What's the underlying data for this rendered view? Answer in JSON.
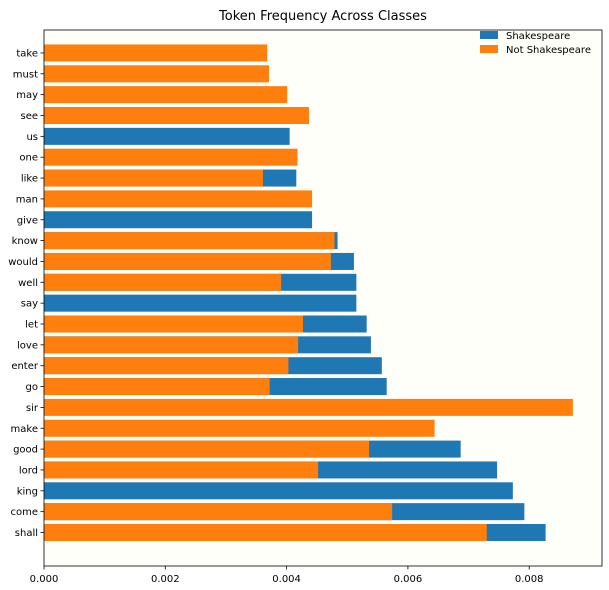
{
  "chart_data": {
    "type": "bar",
    "orientation": "horizontal",
    "title": "Token Frequency Across Classes",
    "xlabel": "",
    "ylabel": "",
    "xlim": [
      0,
      0.0092
    ],
    "xticks": [
      "0.000",
      "0.002",
      "0.004",
      "0.006",
      "0.008"
    ],
    "xtick_values": [
      0,
      0.002,
      0.004,
      0.006,
      0.008
    ],
    "grid": false,
    "legend_position": "top-right",
    "background_color": "#fffff9",
    "categories": [
      "shall",
      "come",
      "king",
      "lord",
      "good",
      "make",
      "sir",
      "go",
      "enter",
      "love",
      "let",
      "say",
      "well",
      "would",
      "know",
      "give",
      "man",
      "like",
      "one",
      "us",
      "see",
      "may",
      "must",
      "take"
    ],
    "series": [
      {
        "name": "Shakespeare",
        "color": "#1f77b4",
        "values": [
          0.00827,
          0.00792,
          0.00773,
          0.00747,
          0.00687,
          null,
          null,
          0.00565,
          0.00557,
          0.00539,
          0.00532,
          0.00515,
          0.00515,
          0.00511,
          0.00484,
          0.00442,
          null,
          0.00416,
          null,
          0.00405,
          null,
          null,
          null,
          null
        ]
      },
      {
        "name": "Not Shakespeare",
        "color": "#ff7f0e",
        "values": [
          0.0073,
          0.00574,
          null,
          0.00452,
          0.00536,
          0.00644,
          0.00872,
          0.00372,
          0.00403,
          0.00419,
          0.00427,
          null,
          0.00391,
          0.00473,
          0.00479,
          null,
          0.00442,
          0.00361,
          0.00418,
          null,
          0.00437,
          0.00401,
          0.00371,
          0.00368
        ]
      }
    ]
  }
}
